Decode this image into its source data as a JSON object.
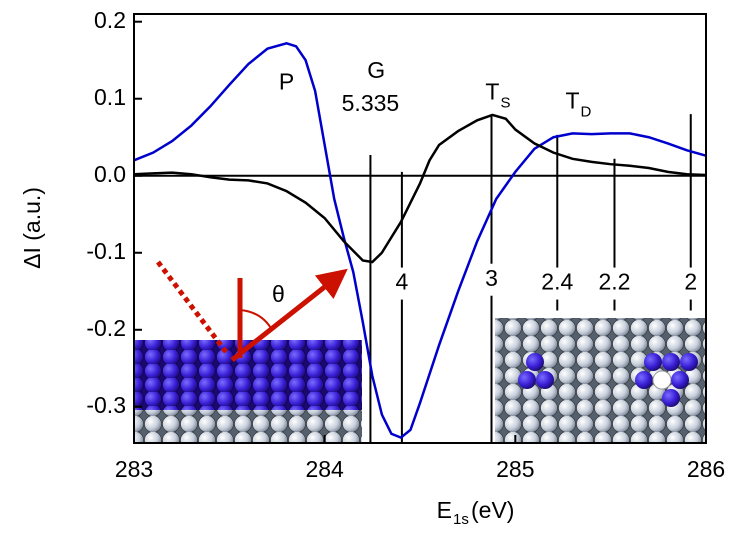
{
  "chart_data": {
    "type": "line",
    "xlabel": "E",
    "xlabel_sub": "1s",
    "xlabel_rest": "(eV)",
    "ylabel": "ΔI (a.u.)",
    "inset_angle_label": "θ",
    "xlim": [
      283,
      286
    ],
    "xticks": [
      283,
      284,
      285,
      286
    ],
    "ylim": [
      -0.347,
      0.21
    ],
    "yticks": [
      0.2,
      0.1,
      {
        "value": 0,
        "label": "0.0"
      },
      -0.1,
      -0.2,
      -0.3
    ],
    "zero_line": true,
    "series": [
      {
        "color": "#0000cc",
        "x": [
          283.0,
          283.1,
          283.2,
          283.3,
          283.4,
          283.5,
          283.6,
          283.7,
          283.8,
          283.85,
          283.9,
          283.95,
          284.0,
          284.05,
          284.1,
          284.15,
          284.2,
          284.25,
          284.3,
          284.35,
          284.4,
          284.45,
          284.5,
          284.6,
          284.7,
          284.8,
          284.9,
          285.0,
          285.1,
          285.2,
          285.3,
          285.4,
          285.5,
          285.6,
          285.7,
          285.8,
          285.9,
          286.0
        ],
        "values": [
          0.02,
          0.03,
          0.045,
          0.065,
          0.09,
          0.118,
          0.145,
          0.165,
          0.172,
          0.168,
          0.15,
          0.11,
          0.04,
          -0.03,
          -0.08,
          -0.125,
          -0.19,
          -0.26,
          -0.31,
          -0.335,
          -0.34,
          -0.33,
          -0.295,
          -0.22,
          -0.15,
          -0.085,
          -0.03,
          0.005,
          0.035,
          0.05,
          0.055,
          0.054,
          0.055,
          0.055,
          0.05,
          0.042,
          0.033,
          0.026
        ]
      },
      {
        "color": "#000000",
        "x": [
          283.0,
          283.1,
          283.2,
          283.3,
          283.4,
          283.5,
          283.6,
          283.7,
          283.8,
          283.9,
          284.0,
          284.1,
          284.2,
          284.25,
          284.3,
          284.4,
          284.5,
          284.55,
          284.6,
          284.7,
          284.8,
          284.88,
          284.95,
          285.0,
          285.1,
          285.2,
          285.3,
          285.4,
          285.5,
          285.6,
          285.7,
          285.8,
          285.9,
          286.0
        ],
        "values": [
          0.002,
          0.003,
          0.004,
          0.002,
          -0.002,
          -0.005,
          -0.006,
          -0.01,
          -0.02,
          -0.035,
          -0.055,
          -0.085,
          -0.11,
          -0.112,
          -0.1,
          -0.06,
          -0.01,
          0.02,
          0.04,
          0.058,
          0.072,
          0.079,
          0.074,
          0.06,
          0.042,
          0.03,
          0.022,
          0.018,
          0.015,
          0.013,
          0.01,
          0.005,
          0.002,
          0.001
        ]
      }
    ],
    "markers": [
      {
        "label": "5.335",
        "x": 284.24,
        "y1": -0.347,
        "y2": 0.027,
        "label_y": 0.092
      },
      {
        "label": "4",
        "x": 284.405,
        "y1": -0.347,
        "y2": 0.005,
        "label_y": -0.14
      },
      {
        "label": "3",
        "x": 284.875,
        "y1": -0.347,
        "y2": 0.077,
        "label_y": -0.135
      },
      {
        "label": "2.4",
        "x": 285.22,
        "y1": -0.175,
        "y2": 0.053,
        "label_y": -0.14
      },
      {
        "label": "2.2",
        "x": 285.52,
        "y1": -0.175,
        "y2": 0.022,
        "label_y": -0.14
      },
      {
        "label": "2",
        "x": 285.92,
        "y1": -0.175,
        "y2": 0.08,
        "label_y": -0.14
      }
    ],
    "annotations": [
      {
        "text": "P",
        "x": 283.8,
        "y": 0.12
      },
      {
        "text": "G",
        "x": 284.27,
        "y": 0.135
      },
      {
        "text": "T",
        "sub": "S",
        "x": 284.88,
        "y": 0.107
      },
      {
        "text": "T",
        "sub": "D",
        "x": 285.3,
        "y": 0.095
      }
    ]
  }
}
